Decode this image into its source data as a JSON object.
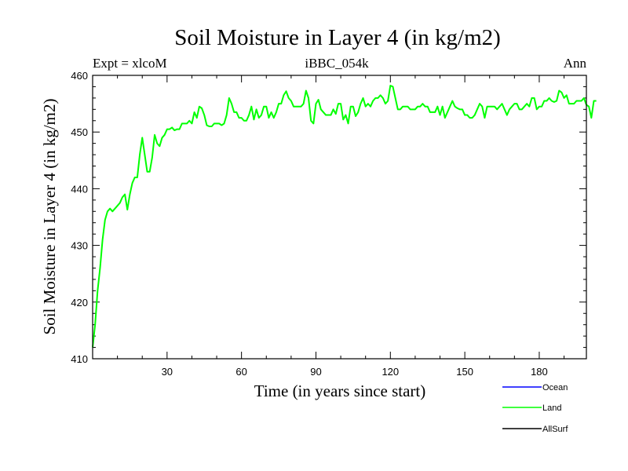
{
  "chart_data": {
    "type": "line",
    "title": "Soil Moisture in Layer 4 (in kg/m2)",
    "subtitle_left": "Expt = xlcoM",
    "subtitle_center": "iBBC_054k",
    "subtitle_right": "Ann",
    "xlabel": "Time (in years since start)",
    "ylabel": "Soil Moisture in Layer 4 (in kg/m2)",
    "xlim": [
      0,
      199
    ],
    "ylim": [
      410,
      460
    ],
    "x_ticks": [
      30,
      60,
      90,
      120,
      150,
      180
    ],
    "x_tick_labels": [
      "30",
      "60",
      "90",
      "120",
      "150",
      "180"
    ],
    "y_ticks": [
      410,
      420,
      430,
      440,
      450,
      460
    ],
    "y_tick_labels": [
      "410",
      "420",
      "430",
      "440",
      "450",
      "460"
    ],
    "legend": [
      {
        "name": "Ocean",
        "color": "#0000ff"
      },
      {
        "name": "Land",
        "color": "#00ff00"
      },
      {
        "name": "AllSurf",
        "color": "#000000"
      }
    ],
    "series": [
      {
        "name": "Land",
        "color": "#00ff00",
        "x_start": 0,
        "x_step": 1,
        "values": [
          412,
          416,
          422,
          426,
          431,
          434.5,
          436,
          436.5,
          436,
          436.5,
          437,
          437.5,
          438.5,
          439,
          436.3,
          439,
          441,
          442,
          442,
          446,
          449,
          446,
          443,
          443,
          445.5,
          449.5,
          448,
          447.5,
          449,
          449.5,
          450.5,
          450.5,
          450.8,
          450.3,
          450.5,
          450.5,
          451.5,
          451.5,
          451.5,
          452,
          451.5,
          453.5,
          452.5,
          454.5,
          454.2,
          453,
          451.2,
          451,
          451,
          451.5,
          451.5,
          451.5,
          451.2,
          451.5,
          453,
          456,
          455,
          453.5,
          453.5,
          452.5,
          452.5,
          452,
          452,
          453,
          454.5,
          452.2,
          454,
          452.5,
          453,
          454.5,
          454.5,
          452.5,
          453.5,
          452.5,
          453.5,
          455,
          455,
          456.5,
          457.2,
          456,
          455.5,
          454.5,
          454.5,
          454.5,
          454.5,
          455,
          457.3,
          456,
          452,
          451.5,
          455,
          455.7,
          454,
          453.5,
          453,
          453,
          453,
          454,
          453.2,
          455,
          455,
          452.2,
          453,
          451.5,
          454.5,
          454.5,
          452.8,
          453.5,
          455,
          456,
          454.5,
          455,
          454.5,
          455.5,
          456,
          456,
          456.5,
          456,
          455,
          455.5,
          458.2,
          458,
          456,
          454,
          454,
          454.5,
          454.5,
          454.5,
          454,
          454,
          454,
          454.5,
          454.5,
          455,
          454.5,
          454.5,
          453.5,
          453.5,
          453.5,
          454.5,
          453,
          454.5,
          452.5,
          453.5,
          454.5,
          455.5,
          454.5,
          454.2,
          454,
          454,
          453,
          453,
          452.5,
          452.5,
          453,
          454,
          455,
          454.5,
          452.5,
          454.5,
          454.5,
          454.5,
          454.5,
          454,
          454.5,
          455,
          454,
          453,
          454,
          454.5,
          455,
          455,
          454,
          454,
          454.5,
          455,
          454.5,
          456,
          456,
          454,
          454.5,
          454.5,
          455.5,
          455.5,
          456,
          455.5,
          455.3,
          455.5,
          457.3,
          457,
          456,
          456.5,
          455,
          455,
          455,
          455.5,
          455.5,
          455.5,
          456,
          454.8,
          454.5,
          452.5,
          455.5,
          455.5
        ]
      }
    ]
  }
}
